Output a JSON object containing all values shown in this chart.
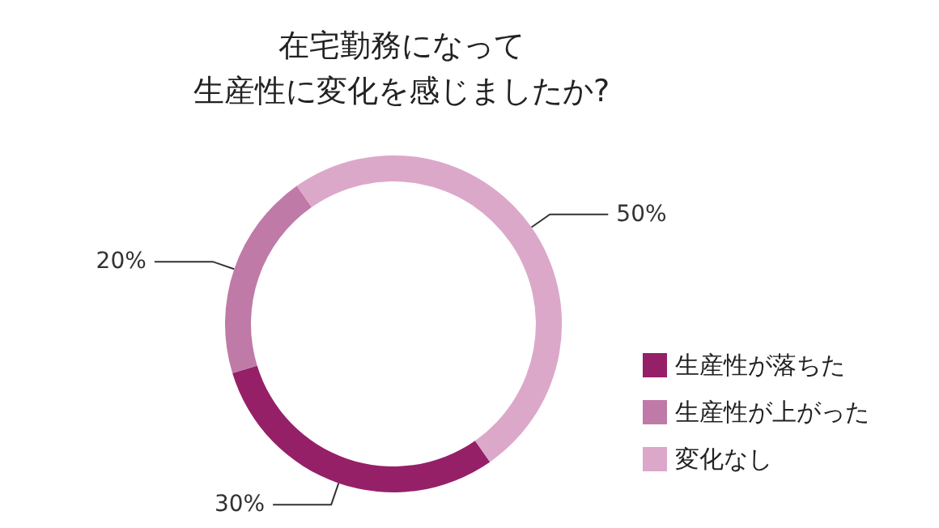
{
  "chart_data": {
    "type": "donut",
    "title": "在宅勤務になって",
    "subtitle": "生産性に変化を感じましたか?",
    "categories": [
      "生産性が落ちた",
      "生産性が上がった",
      "変化なし"
    ],
    "values": [
      30,
      20,
      50
    ],
    "value_labels": [
      "30%",
      "20%",
      "50%"
    ],
    "colors": [
      "#952068",
      "#c07aa8",
      "#dba8ca"
    ],
    "legend": "bottom right"
  }
}
